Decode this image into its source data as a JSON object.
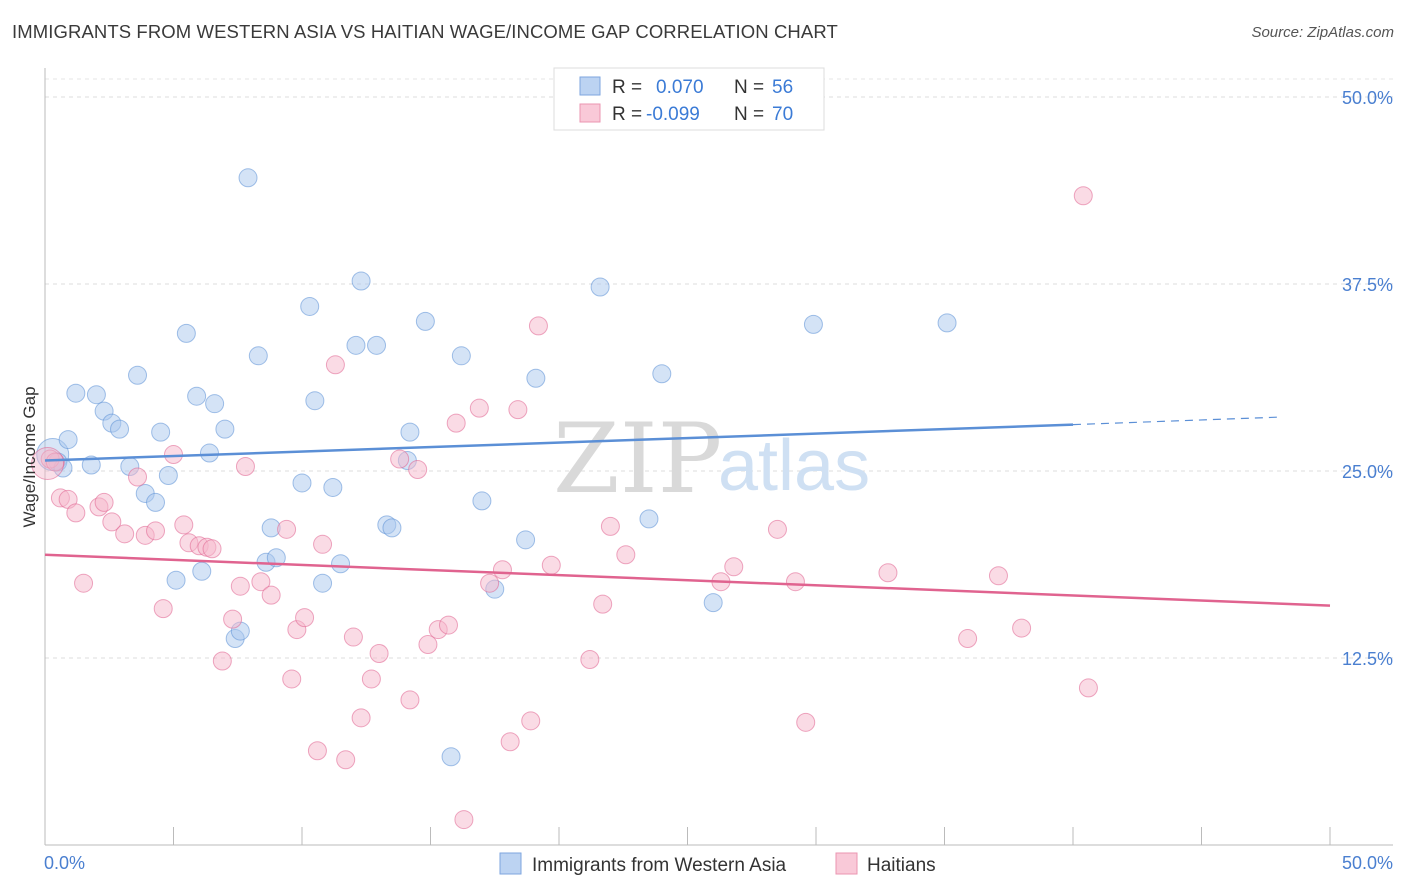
{
  "title": "IMMIGRANTS FROM WESTERN ASIA VS HAITIAN WAGE/INCOME GAP CORRELATION CHART",
  "source": "Source: ZipAtlas.com",
  "watermark": {
    "zip": "ZIP",
    "atlas": "atlas"
  },
  "legend_top": [
    {
      "r_label": "R =",
      "r_value": "0.070",
      "n_label": "N =",
      "n_value": "56",
      "color": "#a9c8ee"
    },
    {
      "r_label": "R =",
      "r_value": "-0.099",
      "n_label": "N =",
      "n_value": "70",
      "color": "#f5b8cc"
    }
  ],
  "legend_bottom": [
    {
      "label": "Immigrants from Western Asia",
      "color": "#a9c8ee"
    },
    {
      "label": "Haitians",
      "color": "#f5b8cc"
    }
  ],
  "chart_data": {
    "type": "scatter",
    "ylabel": "Wage/Income Gap",
    "xlim": [
      0,
      50
    ],
    "ylim": [
      0,
      50
    ],
    "x_tick_labels": [
      "0.0%",
      "50.0%"
    ],
    "y_ticks": [
      12.5,
      25.0,
      37.5,
      50.0
    ],
    "y_tick_labels": [
      "12.5%",
      "25.0%",
      "37.5%",
      "50.0%"
    ],
    "grid": true,
    "series": [
      {
        "name": "Immigrants from Western Asia",
        "color": "#5b8fd6",
        "fill": "#a9c8ee",
        "trend": {
          "x0": 0,
          "y0": 25.7,
          "x1": 40,
          "y1": 28.1,
          "dash_to_x": 48,
          "dash_to_y": 28.6
        },
        "points": [
          [
            0.3,
            26.1
          ],
          [
            0.5,
            25.6
          ],
          [
            0.7,
            25.2
          ],
          [
            0.9,
            27.1
          ],
          [
            1.2,
            30.2
          ],
          [
            1.8,
            25.4
          ],
          [
            2.0,
            30.1
          ],
          [
            2.3,
            29.0
          ],
          [
            2.6,
            28.2
          ],
          [
            2.9,
            27.8
          ],
          [
            3.3,
            25.3
          ],
          [
            3.6,
            31.4
          ],
          [
            3.9,
            23.5
          ],
          [
            4.3,
            22.9
          ],
          [
            4.5,
            27.6
          ],
          [
            4.8,
            24.7
          ],
          [
            5.1,
            17.7
          ],
          [
            5.5,
            34.2
          ],
          [
            5.9,
            30.0
          ],
          [
            6.1,
            18.3
          ],
          [
            6.4,
            26.2
          ],
          [
            6.6,
            29.5
          ],
          [
            7.0,
            27.8
          ],
          [
            7.4,
            13.8
          ],
          [
            7.6,
            14.3
          ],
          [
            7.9,
            44.6
          ],
          [
            8.3,
            32.7
          ],
          [
            8.6,
            18.9
          ],
          [
            8.8,
            21.2
          ],
          [
            9.0,
            19.2
          ],
          [
            10.0,
            24.2
          ],
          [
            10.3,
            36.0
          ],
          [
            10.5,
            29.7
          ],
          [
            10.8,
            17.5
          ],
          [
            11.2,
            23.9
          ],
          [
            11.5,
            18.8
          ],
          [
            12.1,
            33.4
          ],
          [
            12.3,
            37.7
          ],
          [
            12.9,
            33.4
          ],
          [
            13.3,
            21.4
          ],
          [
            13.5,
            21.2
          ],
          [
            14.1,
            25.7
          ],
          [
            14.2,
            27.6
          ],
          [
            14.8,
            35.0
          ],
          [
            15.8,
            5.9
          ],
          [
            16.2,
            32.7
          ],
          [
            17.0,
            23.0
          ],
          [
            17.5,
            17.1
          ],
          [
            18.7,
            20.4
          ],
          [
            19.1,
            31.2
          ],
          [
            21.6,
            37.3
          ],
          [
            23.5,
            21.8
          ],
          [
            24.0,
            31.5
          ],
          [
            26.0,
            16.2
          ],
          [
            29.9,
            34.8
          ],
          [
            35.1,
            34.9
          ]
        ]
      },
      {
        "name": "Haitians",
        "color": "#e0638f",
        "fill": "#f5b8cc",
        "trend": {
          "x0": 0,
          "y0": 19.4,
          "x1": 50,
          "y1": 16.0
        },
        "points": [
          [
            0.2,
            25.8
          ],
          [
            0.4,
            25.6
          ],
          [
            0.6,
            23.2
          ],
          [
            0.9,
            23.1
          ],
          [
            1.2,
            22.2
          ],
          [
            1.5,
            17.5
          ],
          [
            2.1,
            22.6
          ],
          [
            2.3,
            22.9
          ],
          [
            2.6,
            21.6
          ],
          [
            3.1,
            20.8
          ],
          [
            3.6,
            24.6
          ],
          [
            3.9,
            20.7
          ],
          [
            4.3,
            21.0
          ],
          [
            4.6,
            15.8
          ],
          [
            5.0,
            26.1
          ],
          [
            5.4,
            21.4
          ],
          [
            5.6,
            20.2
          ],
          [
            6.0,
            20.0
          ],
          [
            6.3,
            19.9
          ],
          [
            6.5,
            19.8
          ],
          [
            6.9,
            12.3
          ],
          [
            7.3,
            15.1
          ],
          [
            7.6,
            17.3
          ],
          [
            7.8,
            25.3
          ],
          [
            8.4,
            17.6
          ],
          [
            8.8,
            16.7
          ],
          [
            9.4,
            21.1
          ],
          [
            9.6,
            11.1
          ],
          [
            9.8,
            14.4
          ],
          [
            10.1,
            15.2
          ],
          [
            10.6,
            6.3
          ],
          [
            10.8,
            20.1
          ],
          [
            11.3,
            32.1
          ],
          [
            11.7,
            5.7
          ],
          [
            12.0,
            13.9
          ],
          [
            12.3,
            8.5
          ],
          [
            12.7,
            11.1
          ],
          [
            13.0,
            12.8
          ],
          [
            13.8,
            25.8
          ],
          [
            14.2,
            9.7
          ],
          [
            14.5,
            25.1
          ],
          [
            14.9,
            13.4
          ],
          [
            15.3,
            14.4
          ],
          [
            15.7,
            14.7
          ],
          [
            16.0,
            28.2
          ],
          [
            16.3,
            1.7
          ],
          [
            16.9,
            29.2
          ],
          [
            17.3,
            17.5
          ],
          [
            17.8,
            18.4
          ],
          [
            18.1,
            6.9
          ],
          [
            18.4,
            29.1
          ],
          [
            18.9,
            8.3
          ],
          [
            19.2,
            34.7
          ],
          [
            19.7,
            18.7
          ],
          [
            21.2,
            12.4
          ],
          [
            21.7,
            16.1
          ],
          [
            22.0,
            21.3
          ],
          [
            22.6,
            19.4
          ],
          [
            26.3,
            17.6
          ],
          [
            26.8,
            18.6
          ],
          [
            28.5,
            21.1
          ],
          [
            29.2,
            17.6
          ],
          [
            29.6,
            8.2
          ],
          [
            32.8,
            18.2
          ],
          [
            35.9,
            13.8
          ],
          [
            37.1,
            18.0
          ],
          [
            38.0,
            14.5
          ],
          [
            40.4,
            43.4
          ],
          [
            40.6,
            10.5
          ],
          [
            0.1,
            25.5
          ]
        ]
      }
    ]
  }
}
